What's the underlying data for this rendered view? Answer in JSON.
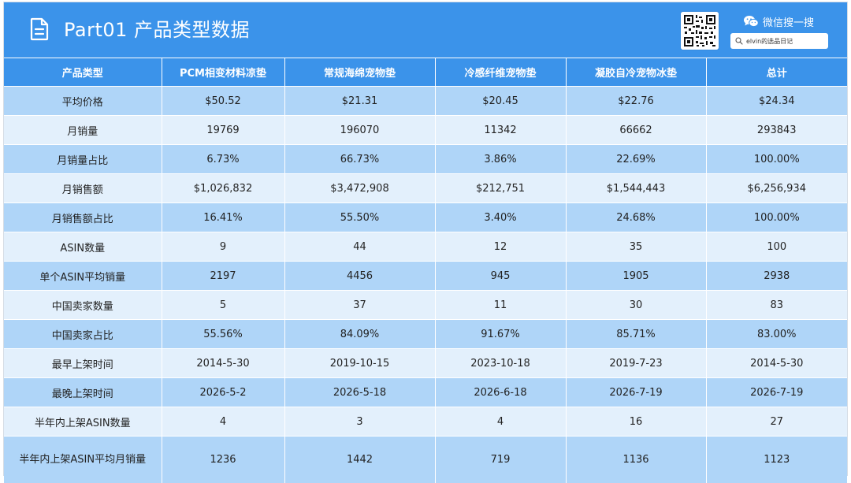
{
  "header": {
    "title": "Part01  产品类型数据",
    "title_icon": "document-icon",
    "wechat_label": "微信搜一搜",
    "wechat_icon": "wechat-icon",
    "search_value": "elvin的选品日记",
    "search_icon": "search-icon",
    "qr_icon": "qr-code-icon",
    "accent_color": "#3b93ea"
  },
  "table": {
    "headers": [
      "产品类型",
      "PCM相变材料凉垫",
      "常规海绵宠物垫",
      "冷感纤维宠物垫",
      "凝胶自冷宠物冰垫",
      "总计"
    ],
    "rows": [
      [
        "平均价格",
        "$50.52",
        "$21.31",
        "$20.45",
        "$22.76",
        "$24.34"
      ],
      [
        "月销量",
        "19769",
        "196070",
        "11342",
        "66662",
        "293843"
      ],
      [
        "月销量占比",
        "6.73%",
        "66.73%",
        "3.86%",
        "22.69%",
        "100.00%"
      ],
      [
        "月销售额",
        "$1,026,832",
        "$3,472,908",
        "$212,751",
        "$1,544,443",
        "$6,256,934"
      ],
      [
        "月销售额占比",
        "16.41%",
        "55.50%",
        "3.40%",
        "24.68%",
        "100.00%"
      ],
      [
        "ASIN数量",
        "9",
        "44",
        "12",
        "35",
        "100"
      ],
      [
        "单个ASIN平均销量",
        "2197",
        "4456",
        "945",
        "1905",
        "2938"
      ],
      [
        "中国卖家数量",
        "5",
        "37",
        "11",
        "30",
        "83"
      ],
      [
        "中国卖家占比",
        "55.56%",
        "84.09%",
        "91.67%",
        "85.71%",
        "83.00%"
      ],
      [
        "最早上架时间",
        "2014-5-30",
        "2019-10-15",
        "2023-10-18",
        "2019-7-23",
        "2014-5-30"
      ],
      [
        "最晚上架时间",
        "2026-5-2",
        "2026-5-18",
        "2026-6-18",
        "2026-7-19",
        "2026-7-19"
      ],
      [
        "半年内上架ASIN数量",
        "4",
        "3",
        "4",
        "16",
        "27"
      ],
      [
        "半年内上架ASIN平均月销量",
        "1236",
        "1442",
        "719",
        "1136",
        "1123"
      ]
    ],
    "row_colors": {
      "odd": "#afd5f8",
      "even": "#e3f0fc"
    }
  }
}
